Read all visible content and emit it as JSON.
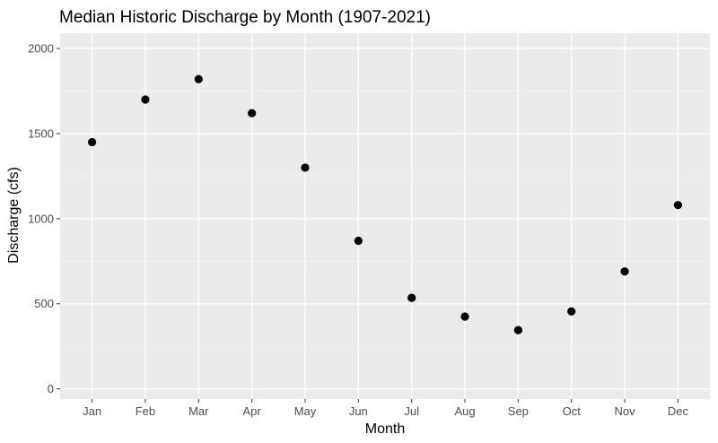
{
  "chart_data": {
    "type": "scatter",
    "title": "Median Historic Discharge by Month (1907-2021)",
    "xlabel": "Month",
    "ylabel": "Discharge (cfs)",
    "categories": [
      "Jan",
      "Feb",
      "Mar",
      "Apr",
      "May",
      "Jun",
      "Jul",
      "Aug",
      "Sep",
      "Oct",
      "Nov",
      "Dec"
    ],
    "values": [
      1450,
      1700,
      1820,
      1620,
      1300,
      870,
      535,
      425,
      345,
      455,
      690,
      1080
    ],
    "ylim": [
      -60,
      2090
    ],
    "yticks": [
      0,
      500,
      1000,
      1500,
      2000
    ],
    "ytick_labels": [
      "0",
      "500",
      "1000",
      "1500",
      "2000"
    ],
    "grid": true,
    "colors": {
      "panel": "#ebebeb",
      "grid_major": "#ffffff",
      "grid_minor": "#f4f4f4",
      "point": "#000000",
      "tick_label": "#4d4d4d",
      "tick": "#333333"
    }
  }
}
